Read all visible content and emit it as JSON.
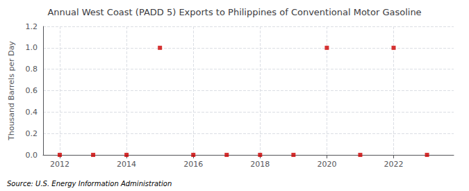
{
  "chart_data": {
    "type": "scatter",
    "title": "Annual West Coast (PADD 5) Exports to Philippines of Conventional Motor Gasoline",
    "ylabel": "Thousand Barrels per Day",
    "source": "Source: U.S. Energy Information Administration",
    "x": [
      2012,
      2013,
      2014,
      2015,
      2016,
      2017,
      2018,
      2019,
      2020,
      2021,
      2022,
      2023
    ],
    "values": [
      0.0,
      0.0,
      0.0,
      1.0,
      0.0,
      0.0,
      0.0,
      0.0,
      1.0,
      0.0,
      1.0,
      0.0
    ],
    "color": "#cc0000",
    "marker": "square",
    "xlim": [
      2011.5,
      2023.8
    ],
    "xticks": [
      2012,
      2014,
      2016,
      2018,
      2020,
      2022
    ],
    "ylim": [
      0.0,
      1.2
    ],
    "yticks": [
      {
        "value": 0.0,
        "label": "0.0"
      },
      0.2,
      0.4,
      0.6,
      0.8,
      {
        "value": 1.0,
        "label": "1.0"
      },
      1.2
    ],
    "grid": true
  }
}
